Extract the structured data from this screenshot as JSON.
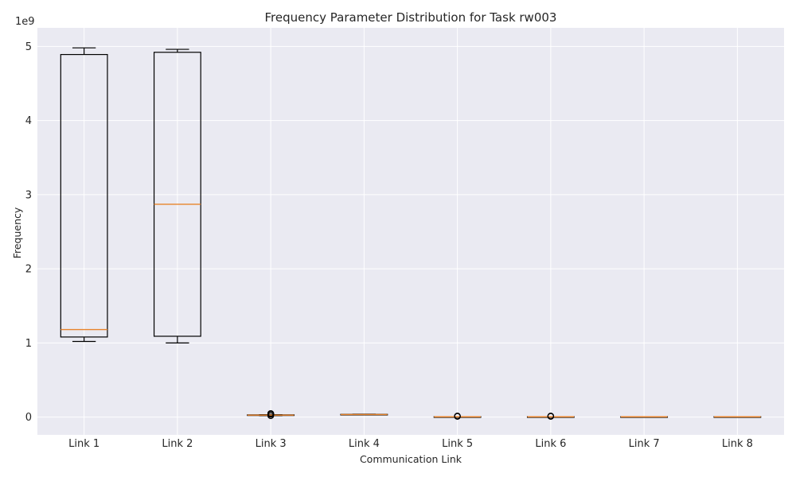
{
  "chart_data": {
    "type": "box",
    "title": "Frequency Parameter Distribution for Task rw003",
    "xlabel": "Communication Link",
    "ylabel": "Frequency",
    "y_multiplier_label": "1e9",
    "y_unit_scale": 1000000000,
    "ylim": [
      -240000000,
      5250000000
    ],
    "yticks": [
      0,
      1,
      2,
      3,
      4,
      5
    ],
    "grid": true,
    "colors": {
      "plot_background": "#EAEAF2",
      "grid": "#FFFFFF",
      "box": "#000000",
      "median": "#E8832A"
    },
    "categories": [
      "Link 1",
      "Link 2",
      "Link 3",
      "Link 4",
      "Link 5",
      "Link 6",
      "Link 7",
      "Link 8"
    ],
    "boxes": [
      {
        "label": "Link 1",
        "whisker_low": 1020000000,
        "q1": 1080000000,
        "median": 1180000000,
        "q3": 4890000000,
        "whisker_high": 4980000000,
        "outliers": []
      },
      {
        "label": "Link 2",
        "whisker_low": 1000000000,
        "q1": 1090000000,
        "median": 2870000000,
        "q3": 4920000000,
        "whisker_high": 4960000000,
        "outliers": []
      },
      {
        "label": "Link 3",
        "whisker_low": 20000000,
        "q1": 22000000,
        "median": 26000000,
        "q3": 30000000,
        "whisker_high": 32000000,
        "outliers": [
          36000000,
          40000000,
          44000000,
          48000000,
          18000000
        ]
      },
      {
        "label": "Link 4",
        "whisker_low": 30000000,
        "q1": 31000000,
        "median": 34000000,
        "q3": 37000000,
        "whisker_high": 39000000,
        "outliers": []
      },
      {
        "label": "Link 5",
        "whisker_low": 2000000,
        "q1": 3000000,
        "median": 4000000,
        "q3": 5000000,
        "whisker_high": 6000000,
        "outliers": [
          9000000,
          12000000,
          14000000
        ]
      },
      {
        "label": "Link 6",
        "whisker_low": 2000000,
        "q1": 3000000,
        "median": 4000000,
        "q3": 5000000,
        "whisker_high": 6000000,
        "outliers": [
          9000000,
          12000000,
          14000000
        ]
      },
      {
        "label": "Link 7",
        "whisker_low": 2000000,
        "q1": 3000000,
        "median": 4000000,
        "q3": 5000000,
        "whisker_high": 6000000,
        "outliers": []
      },
      {
        "label": "Link 8",
        "whisker_low": 2000000,
        "q1": 3000000,
        "median": 4000000,
        "q3": 5000000,
        "whisker_high": 6000000,
        "outliers": []
      }
    ]
  }
}
